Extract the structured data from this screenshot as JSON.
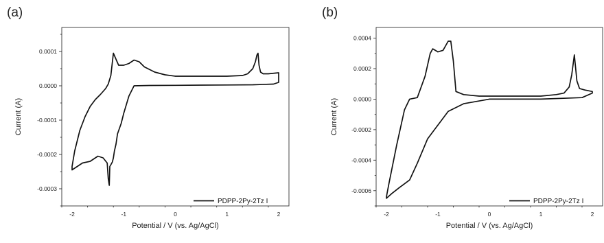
{
  "chart_data": [
    {
      "type": "line",
      "panel_label": "(a)",
      "xlabel": "Potential / V (vs. Ag/AgCl)",
      "ylabel": "Current (A)",
      "xlim": [
        -2.2,
        2.2
      ],
      "ylim": [
        -0.00035,
        0.00017
      ],
      "xticks": [
        -2,
        -1,
        0,
        1,
        2
      ],
      "xtick_labels": [
        "-2",
        "-1",
        "0",
        "1",
        "2"
      ],
      "yticks": [
        -0.0003,
        -0.0002,
        -0.0001,
        0.0,
        0.0001
      ],
      "ytick_labels": [
        "-0.0003",
        "-0.0002",
        "-0.0001",
        "0.0000",
        "0.0001"
      ],
      "grid": false,
      "legend_position": "bottom-right",
      "series": [
        {
          "name": "PDPP-2Py-2Tz I",
          "x": [
            2.0,
            1.9,
            1.5,
            1.0,
            0.5,
            0.0,
            -0.5,
            -0.8,
            -0.9,
            -1.0,
            -1.05,
            -1.12,
            -1.15,
            -1.18,
            -1.2,
            -1.22,
            -1.25,
            -1.27,
            -1.28,
            -1.3,
            -1.32,
            -1.4,
            -1.5,
            -1.55,
            -1.65,
            -1.8,
            -1.9,
            -2.0,
            -2.0,
            -1.95,
            -1.85,
            -1.75,
            -1.65,
            -1.55,
            -1.45,
            -1.35,
            -1.3,
            -1.25,
            -1.2,
            -1.1,
            -1.0,
            -0.9,
            -0.8,
            -0.7,
            -0.6,
            -0.4,
            -0.2,
            0.0,
            0.5,
            1.0,
            1.3,
            1.4,
            1.5,
            1.55,
            1.58,
            1.6,
            1.62,
            1.65,
            1.7,
            1.8,
            2.0,
            2.0
          ],
          "y": [
            1e-05,
            5e-06,
            3e-06,
            2.5e-06,
            2e-06,
            1.5e-06,
            1e-06,
            0.0,
            -3e-05,
            -8e-05,
            -0.00011,
            -0.00014,
            -0.00017,
            -0.00019,
            -0.00021,
            -0.000222,
            -0.00023,
            -0.000235,
            -0.00029,
            -0.00027,
            -0.000225,
            -0.00021,
            -0.000205,
            -0.00021,
            -0.00022,
            -0.000225,
            -0.000235,
            -0.000245,
            -0.000235,
            -0.00019,
            -0.00013,
            -9e-05,
            -6e-05,
            -4e-05,
            -2.5e-05,
            -8e-06,
            5e-06,
            3e-05,
            9.5e-05,
            6e-05,
            6e-05,
            6.5e-05,
            7.5e-05,
            7e-05,
            5.5e-05,
            4e-05,
            3.2e-05,
            2.8e-05,
            2.8e-05,
            2.8e-05,
            3e-05,
            3.5e-05,
            5e-05,
            7e-05,
            9e-05,
            9.5e-05,
            6e-05,
            4e-05,
            3.5e-05,
            3.5e-05,
            3.8e-05,
            1e-05
          ]
        }
      ]
    },
    {
      "type": "line",
      "panel_label": "(b)",
      "xlabel": "Potential / V (vs. Ag/AgCl)",
      "ylabel": "Current (A)",
      "xlim": [
        -2.2,
        2.2
      ],
      "ylim": [
        -0.0007,
        0.00047
      ],
      "xticks": [
        -2,
        -1,
        0,
        1,
        2
      ],
      "xtick_labels": [
        "-2",
        "-1",
        "0",
        "1",
        "2"
      ],
      "yticks": [
        -0.0006,
        -0.0004,
        -0.0002,
        0.0,
        0.0002,
        0.0004
      ],
      "ytick_labels": [
        "-0.0006",
        "-0.0004",
        "-0.0002",
        "0.0000",
        "0.0002",
        "0.0004"
      ],
      "grid": false,
      "legend_position": "bottom-right",
      "series": [
        {
          "name": "PDPP-2Py-2Tz I",
          "x": [
            2.0,
            1.8,
            1.0,
            0.0,
            -0.5,
            -0.8,
            -1.0,
            -1.2,
            -1.4,
            -1.55,
            -1.75,
            -1.9,
            -2.0,
            -2.0,
            -1.95,
            -1.8,
            -1.65,
            -1.55,
            -1.4,
            -1.25,
            -1.15,
            -1.1,
            -1.0,
            -0.9,
            -0.8,
            -0.75,
            -0.7,
            -0.65,
            -0.5,
            -0.2,
            0.0,
            0.5,
            1.0,
            1.3,
            1.45,
            1.55,
            1.6,
            1.65,
            1.7,
            1.75,
            1.85,
            2.0,
            2.0
          ],
          "y": [
            4e-05,
            1e-05,
            0.0,
            0.0,
            -3e-05,
            -8e-05,
            -0.00017,
            -0.00026,
            -0.00042,
            -0.00053,
            -0.00058,
            -0.00062,
            -0.00065,
            -0.00064,
            -0.00055,
            -0.0003,
            -7e-05,
            0.0,
            1e-05,
            0.00015,
            0.0003,
            0.00033,
            0.00031,
            0.00032,
            0.00038,
            0.00038,
            0.00025,
            5e-05,
            3e-05,
            2e-05,
            2e-05,
            2e-05,
            2e-05,
            3e-05,
            4e-05,
            8e-05,
            0.00016,
            0.00029,
            0.00012,
            7e-05,
            6e-05,
            5e-05,
            4e-05
          ]
        }
      ]
    }
  ]
}
